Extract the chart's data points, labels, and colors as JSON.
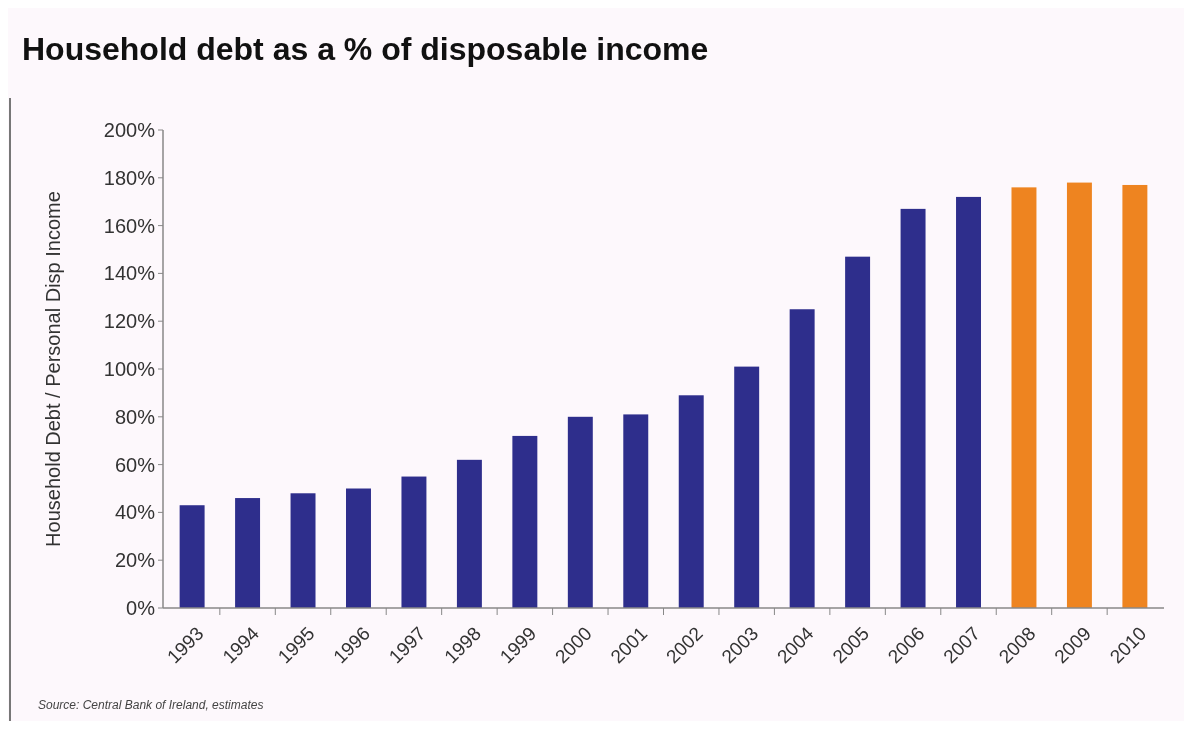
{
  "chart_data": {
    "type": "bar",
    "title": "Household debt as a % of disposable income",
    "ylabel": "Household Debt / Personal Disp Income",
    "categories": [
      "1993",
      "1994",
      "1995",
      "1996",
      "1997",
      "1998",
      "1999",
      "2000",
      "2001",
      "2002",
      "2003",
      "2004",
      "2005",
      "2006",
      "2007",
      "2008",
      "2009",
      "2010"
    ],
    "values": [
      43,
      46,
      48,
      50,
      55,
      62,
      72,
      80,
      81,
      89,
      101,
      125,
      147,
      167,
      172,
      176,
      178,
      177
    ],
    "colors": [
      "#2e2e8c",
      "#2e2e8c",
      "#2e2e8c",
      "#2e2e8c",
      "#2e2e8c",
      "#2e2e8c",
      "#2e2e8c",
      "#2e2e8c",
      "#2e2e8c",
      "#2e2e8c",
      "#2e2e8c",
      "#2e2e8c",
      "#2e2e8c",
      "#2e2e8c",
      "#2e2e8c",
      "#ee8420",
      "#ee8420",
      "#ee8420"
    ],
    "ylim": [
      0,
      200
    ],
    "yticks": [
      {
        "value": 0,
        "label": "0%"
      },
      {
        "value": 20,
        "label": "20%"
      },
      {
        "value": 40,
        "label": "40%"
      },
      {
        "value": 60,
        "label": "60%"
      },
      {
        "value": 80,
        "label": "80%"
      },
      {
        "value": 100,
        "label": "100%"
      },
      {
        "value": 120,
        "label": "120%"
      },
      {
        "value": 140,
        "label": "140%"
      },
      {
        "value": 160,
        "label": "160%"
      },
      {
        "value": 180,
        "label": "180%"
      },
      {
        "value": 200,
        "label": "200%"
      }
    ],
    "grid": false,
    "annotations": [
      "Source: Central Bank of Ireland, estimates"
    ]
  }
}
